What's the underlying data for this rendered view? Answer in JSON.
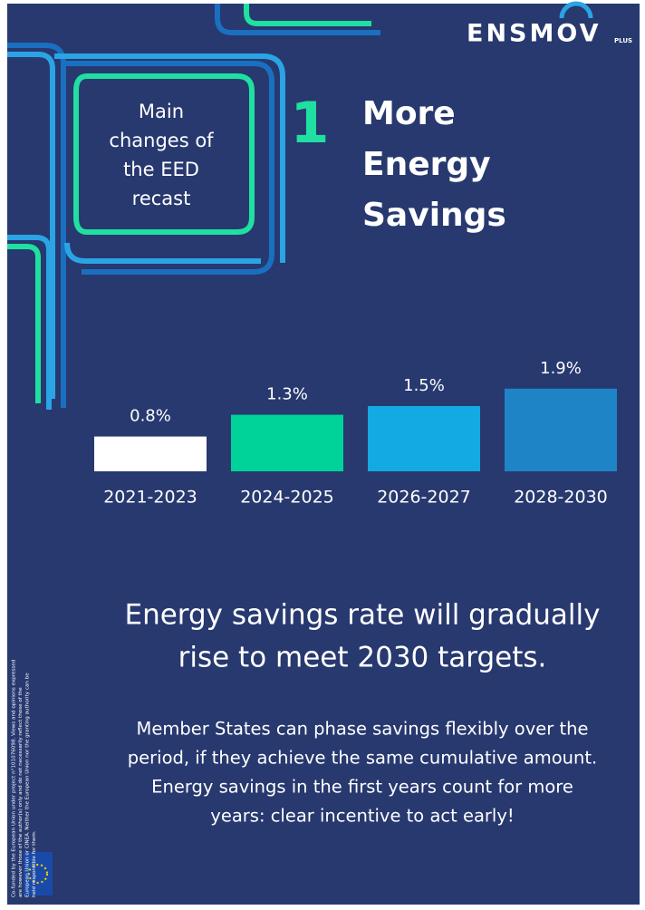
{
  "logo": {
    "name": "ENSMOV",
    "suffix": "PLUS"
  },
  "box_lines": [
    "Main",
    "changes of",
    "the EED",
    "recast"
  ],
  "number": "1",
  "title_lines": [
    "More",
    "Energy",
    "Savings"
  ],
  "chart_data": {
    "type": "bar",
    "categories": [
      "2021-2023",
      "2024-2025",
      "2026-2027",
      "2028-2030"
    ],
    "values": [
      0.8,
      1.3,
      1.5,
      1.9
    ],
    "value_labels": [
      "0.8%",
      "1.3%",
      "1.5%",
      "1.9%"
    ],
    "colors": [
      "#ffffff",
      "#00d39a",
      "#13a9e2",
      "#1f84c6"
    ]
  },
  "headline_lines": [
    "Energy savings rate will gradually",
    "rise to meet 2030 targets."
  ],
  "paragraph_lines": [
    "Member States can phase savings flexibly over the",
    "period, if they achieve the same cumulative amount.",
    "Energy savings in the first years count for more",
    "years: clear incentive to act early!"
  ],
  "disclaimer_lines": [
    "Co-funded by the European Union under project n°101076098. Views and opinions expressed",
    "are however those of the author(s) only and do not necessarily reflect those of the",
    "European Union or CINEA. Neither the European Union nor the granting authority can be",
    "held responsible for them."
  ]
}
